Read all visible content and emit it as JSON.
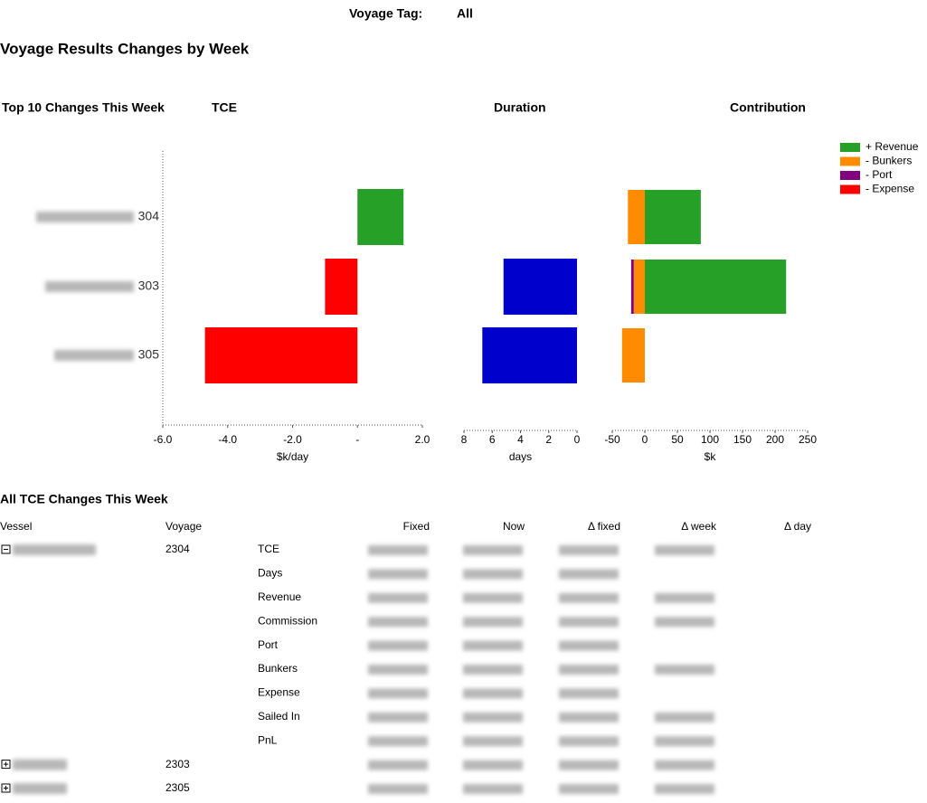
{
  "header": {
    "label": "Voyage Tag:",
    "value": "All"
  },
  "title": "Voyage Results Changes by Week",
  "section_title": "Top 10 Changes This Week",
  "chart_data": [
    {
      "type": "bar",
      "orientation": "horizontal",
      "title": "TCE",
      "x_label": "$k/day",
      "categories": [
        "304",
        "303",
        "305"
      ],
      "values": [
        1.42,
        -1.0,
        -4.7
      ],
      "color": "#ff0000",
      "positive_color": "#26a027",
      "xlim": [
        -6,
        2
      ],
      "xticks": [
        {
          "value": -6,
          "label": "-6.0"
        },
        {
          "value": -4,
          "label": "-4.0"
        },
        {
          "value": -2,
          "label": "-2.0"
        },
        {
          "value": 0,
          "label": "-"
        },
        {
          "value": 2,
          "label": "2.0"
        }
      ]
    },
    {
      "type": "bar",
      "orientation": "horizontal",
      "title": "Duration",
      "x_label": "days",
      "values": [
        null,
        5.2,
        6.7
      ],
      "color": "#0000cd",
      "xlim": [
        8,
        0
      ],
      "xticks": [
        8,
        6,
        4,
        2,
        0
      ]
    },
    {
      "type": "stacked_bar",
      "orientation": "horizontal",
      "title": "Contribution",
      "x_label": "$k",
      "series": [
        {
          "name": "+ Revenue",
          "color": "#26a027",
          "values": [
            86,
            217,
            0
          ]
        },
        {
          "name": "- Bunkers",
          "color": "#ff8c00",
          "values": [
            -26,
            -17,
            -35
          ]
        },
        {
          "name": "- Port",
          "color": "#800080",
          "values": [
            0,
            -4,
            0
          ]
        },
        {
          "name": "- Expense",
          "color": "#ff0000",
          "values": [
            0,
            0,
            0
          ]
        }
      ],
      "xlim": [
        -50,
        250
      ],
      "xticks": [
        -50,
        0,
        50,
        100,
        150,
        200,
        250
      ]
    }
  ],
  "table": {
    "title": "All TCE Changes This Week",
    "columns": [
      "Vessel",
      "Voyage",
      "Fixed",
      "Now",
      "Δ fixed",
      "Δ week",
      "Δ day"
    ],
    "rows": [
      {
        "voyage": "2304",
        "metrics": [
          "TCE",
          "Days",
          "Revenue",
          "Commission",
          "Port",
          "Bunkers",
          "Expense",
          "Sailed In",
          "PnL"
        ]
      },
      {
        "voyage": "2303"
      },
      {
        "voyage": "2305"
      }
    ]
  }
}
